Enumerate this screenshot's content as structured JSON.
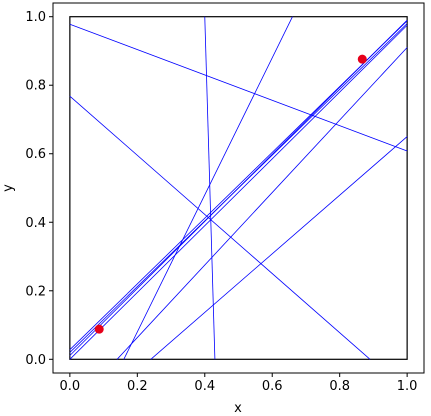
{
  "chart_data": {
    "type": "scatter",
    "title": "",
    "xlabel": "x",
    "ylabel": "y",
    "xlim": [
      -0.05,
      1.05
    ],
    "ylim": [
      -0.04,
      1.04
    ],
    "x_ticks": [
      "0.0",
      "0.2",
      "0.4",
      "0.6",
      "0.8",
      "1.0"
    ],
    "y_ticks": [
      "0.0",
      "0.2",
      "0.4",
      "0.6",
      "0.8",
      "1.0"
    ],
    "grid": false,
    "legend": "none",
    "unit_square": {
      "x": [
        0,
        1
      ],
      "y": [
        0,
        1
      ]
    },
    "points": [
      {
        "x": 0.087,
        "y": 0.088
      },
      {
        "x": 0.867,
        "y": 0.876
      }
    ],
    "segments": [
      {
        "x1": 0.0,
        "y1": 0.978,
        "x2": 1.0,
        "y2": 0.608
      },
      {
        "x1": 0.0,
        "y1": 0.768,
        "x2": 0.89,
        "y2": 0.0
      },
      {
        "x1": 0.0,
        "y1": 0.02,
        "x2": 1.0,
        "y2": 0.98
      },
      {
        "x1": 0.0,
        "y1": 0.028,
        "x2": 1.0,
        "y2": 0.988
      },
      {
        "x1": 0.0,
        "y1": 0.011,
        "x2": 1.0,
        "y2": 0.99
      },
      {
        "x1": 0.0,
        "y1": 0.0,
        "x2": 1.0,
        "y2": 0.975
      },
      {
        "x1": 0.4,
        "y1": 1.0,
        "x2": 0.43,
        "y2": 0.0
      },
      {
        "x1": 0.16,
        "y1": 0.0,
        "x2": 0.66,
        "y2": 1.0
      },
      {
        "x1": 0.14,
        "y1": 0.0,
        "x2": 1.0,
        "y2": 0.91
      },
      {
        "x1": 0.24,
        "y1": 0.0,
        "x2": 1.0,
        "y2": 0.65
      }
    ],
    "colors": {
      "lines": "#0000ff",
      "points": "#e6001a",
      "frame": "#000000"
    }
  }
}
